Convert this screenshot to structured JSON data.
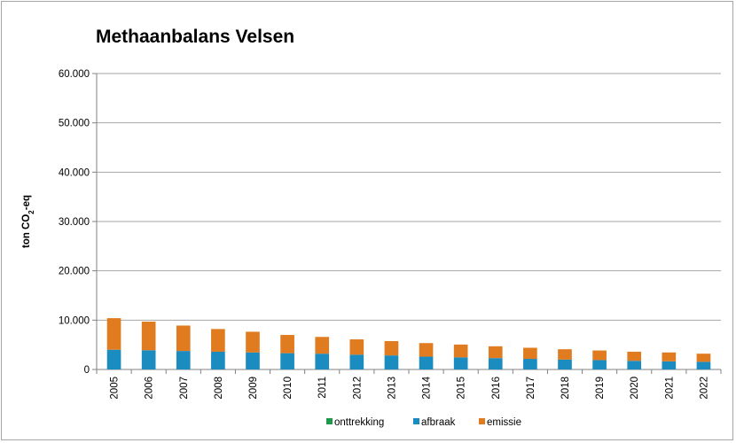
{
  "chart_data": {
    "type": "bar",
    "stacked": true,
    "title": "Methaanbalans Velsen",
    "xlabel": "",
    "ylabel": "ton CO₂-eq",
    "ylim": [
      0,
      60000
    ],
    "yticks": [
      "0",
      "10.000",
      "20.000",
      "30.000",
      "40.000",
      "50.000",
      "60.000"
    ],
    "grid": true,
    "legend_position": "bottom",
    "categories": [
      "2005",
      "2006",
      "2007",
      "2008",
      "2009",
      "2010",
      "2011",
      "2012",
      "2013",
      "2014",
      "2015",
      "2016",
      "2017",
      "2018",
      "2019",
      "2020",
      "2021",
      "2022"
    ],
    "series": [
      {
        "name": "onttrekking",
        "color": "#1e9a4a",
        "values": [
          0,
          0,
          0,
          0,
          0,
          0,
          0,
          0,
          0,
          0,
          0,
          0,
          0,
          0,
          0,
          0,
          0,
          0
        ]
      },
      {
        "name": "afbraak",
        "color": "#1a8cc0",
        "values": [
          4000,
          3900,
          3750,
          3600,
          3450,
          3300,
          3200,
          3000,
          2850,
          2600,
          2450,
          2300,
          2150,
          2000,
          1900,
          1750,
          1650,
          1550
        ]
      },
      {
        "name": "emissie",
        "color": "#e07b1f",
        "values": [
          6400,
          5800,
          5150,
          4600,
          4200,
          3700,
          3400,
          3100,
          2900,
          2750,
          2600,
          2400,
          2250,
          2100,
          1950,
          1850,
          1800,
          1650
        ]
      }
    ]
  }
}
